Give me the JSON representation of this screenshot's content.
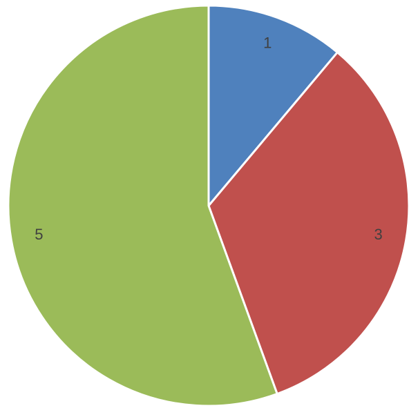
{
  "chart_data": {
    "type": "pie",
    "values": [
      1,
      3,
      5
    ],
    "colors": [
      "#4f81bd",
      "#c0504d",
      "#9bbb59"
    ]
  }
}
